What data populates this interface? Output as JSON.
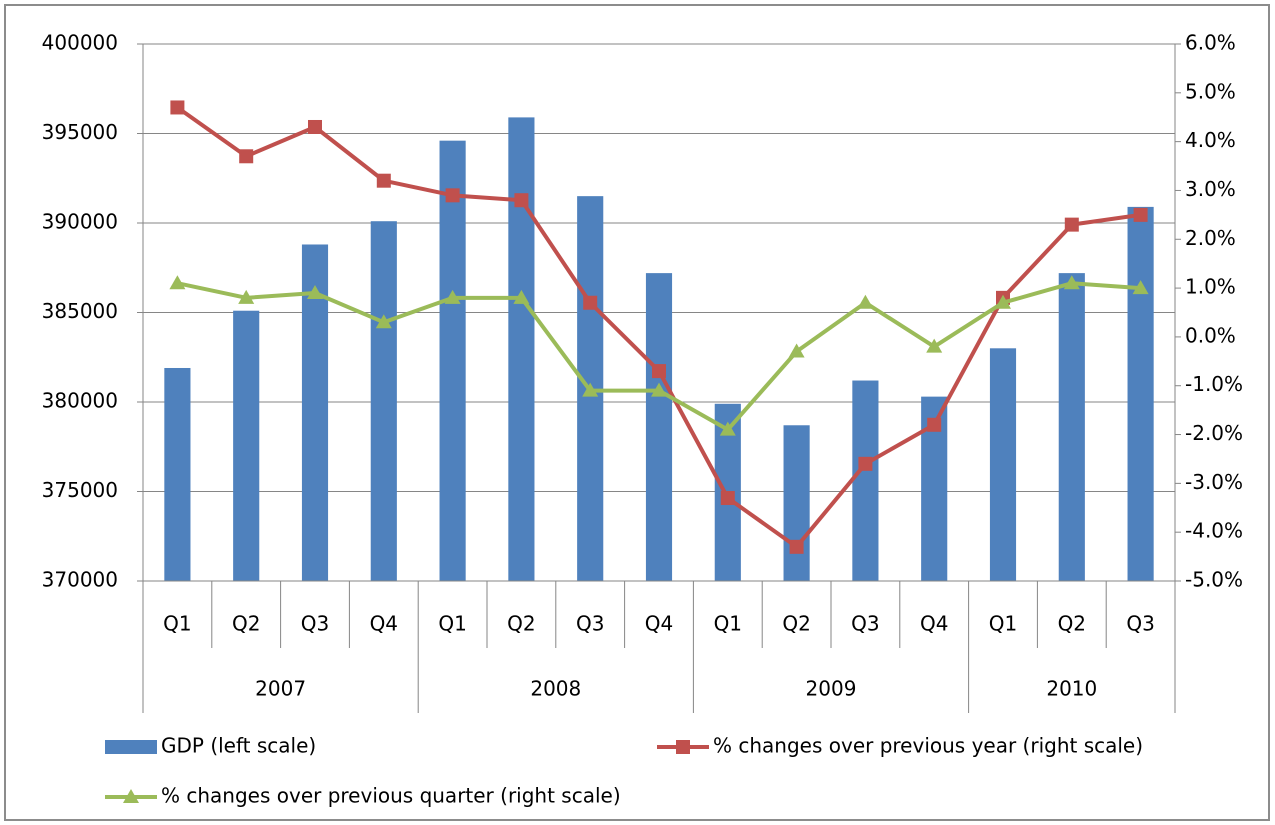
{
  "chart_data": {
    "type": "bar-line",
    "groups": [
      {
        "name": "2007",
        "categories": [
          "Q1",
          "Q2",
          "Q3",
          "Q4"
        ]
      },
      {
        "name": "2008",
        "categories": [
          "Q1",
          "Q2",
          "Q3",
          "Q4"
        ]
      },
      {
        "name": "2009",
        "categories": [
          "Q1",
          "Q2",
          "Q3",
          "Q4"
        ]
      },
      {
        "name": "2010",
        "categories": [
          "Q1",
          "Q2",
          "Q3"
        ]
      }
    ],
    "series": [
      {
        "name": "GDP (left scale)",
        "type": "bar",
        "color": "#4f81bd",
        "axis": "y",
        "values": [
          381900,
          385100,
          388800,
          390100,
          394600,
          395900,
          391500,
          387200,
          379900,
          378700,
          381200,
          380300,
          383000,
          387200,
          390900
        ]
      },
      {
        "name": "% changes over previous year (right scale)",
        "type": "line",
        "marker": "square",
        "color": "#c0504d",
        "axis": "y2",
        "values": [
          4.7,
          3.7,
          4.3,
          3.2,
          2.9,
          2.8,
          0.7,
          -0.7,
          -3.3,
          -4.3,
          -2.6,
          -1.8,
          0.8,
          2.3,
          2.5
        ]
      },
      {
        "name": "% changes over previous quarter (right scale)",
        "type": "line",
        "marker": "triangle",
        "color": "#9bbb59",
        "axis": "y2",
        "values": [
          1.1,
          0.8,
          0.9,
          0.3,
          0.8,
          0.8,
          -1.1,
          -1.1,
          -1.9,
          -0.3,
          0.7,
          -0.2,
          0.7,
          1.1,
          1.0
        ]
      }
    ],
    "ylim": [
      370000,
      400000
    ],
    "yticks": [
      370000,
      375000,
      380000,
      385000,
      390000,
      395000,
      400000
    ],
    "y2lim": [
      -5,
      6
    ],
    "y2ticks": [
      {
        "value": -5,
        "label": "-5.0%"
      },
      {
        "value": -4,
        "label": "-4.0%"
      },
      {
        "value": -3,
        "label": "-3.0%"
      },
      {
        "value": -2,
        "label": "-2.0%"
      },
      {
        "value": -1,
        "label": "-1.0%"
      },
      {
        "value": 0,
        "label": "0.0%"
      },
      {
        "value": 1,
        "label": "1.0%"
      },
      {
        "value": 2,
        "label": "2.0%"
      },
      {
        "value": 3,
        "label": "3.0%"
      },
      {
        "value": 4,
        "label": "4.0%"
      },
      {
        "value": 5,
        "label": "5.0%"
      },
      {
        "value": 6,
        "label": "6.0%"
      }
    ],
    "grid": true,
    "legend": "bottom"
  }
}
